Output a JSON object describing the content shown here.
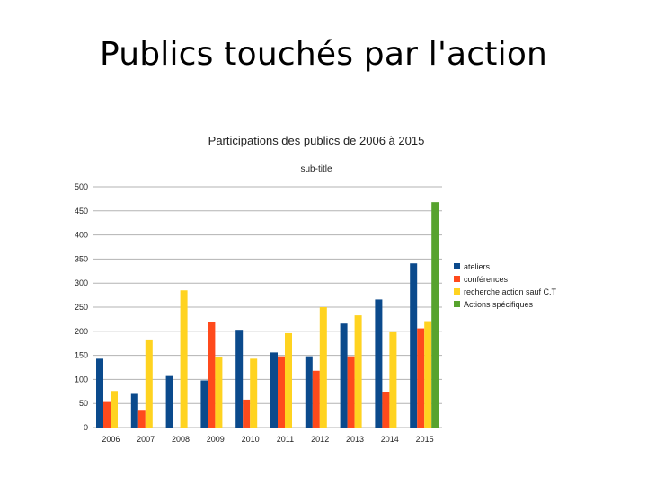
{
  "slide": {
    "title": "Publics touchés par l'action"
  },
  "chart_data": {
    "type": "bar",
    "title": "Participations des publics de 2006 à 2015",
    "subtitle": "sub-title",
    "xlabel": "",
    "ylabel": "",
    "categories": [
      "2006",
      "2007",
      "2008",
      "2009",
      "2010",
      "2011",
      "2012",
      "2013",
      "2014",
      "2015"
    ],
    "ylim": [
      0,
      500
    ],
    "yticks": [
      0,
      50,
      100,
      150,
      200,
      250,
      300,
      350,
      400,
      450,
      500
    ],
    "grid": true,
    "legend_position": "right",
    "series": [
      {
        "name": "ateliers",
        "color": "#0b4a8c",
        "values": [
          143,
          70,
          107,
          98,
          203,
          156,
          148,
          216,
          266,
          341
        ]
      },
      {
        "name": "conférences",
        "color": "#ff4a1c",
        "values": [
          53,
          35,
          0,
          220,
          58,
          148,
          118,
          148,
          73,
          206
        ]
      },
      {
        "name": "recherche action sauf C.T",
        "color": "#ffd320",
        "values": [
          76,
          183,
          285,
          146,
          143,
          196,
          250,
          233,
          198,
          221
        ]
      },
      {
        "name": "Actions spécifiques",
        "color": "#57a32e",
        "values": [
          0,
          0,
          0,
          0,
          0,
          0,
          0,
          0,
          0,
          468
        ]
      }
    ]
  }
}
